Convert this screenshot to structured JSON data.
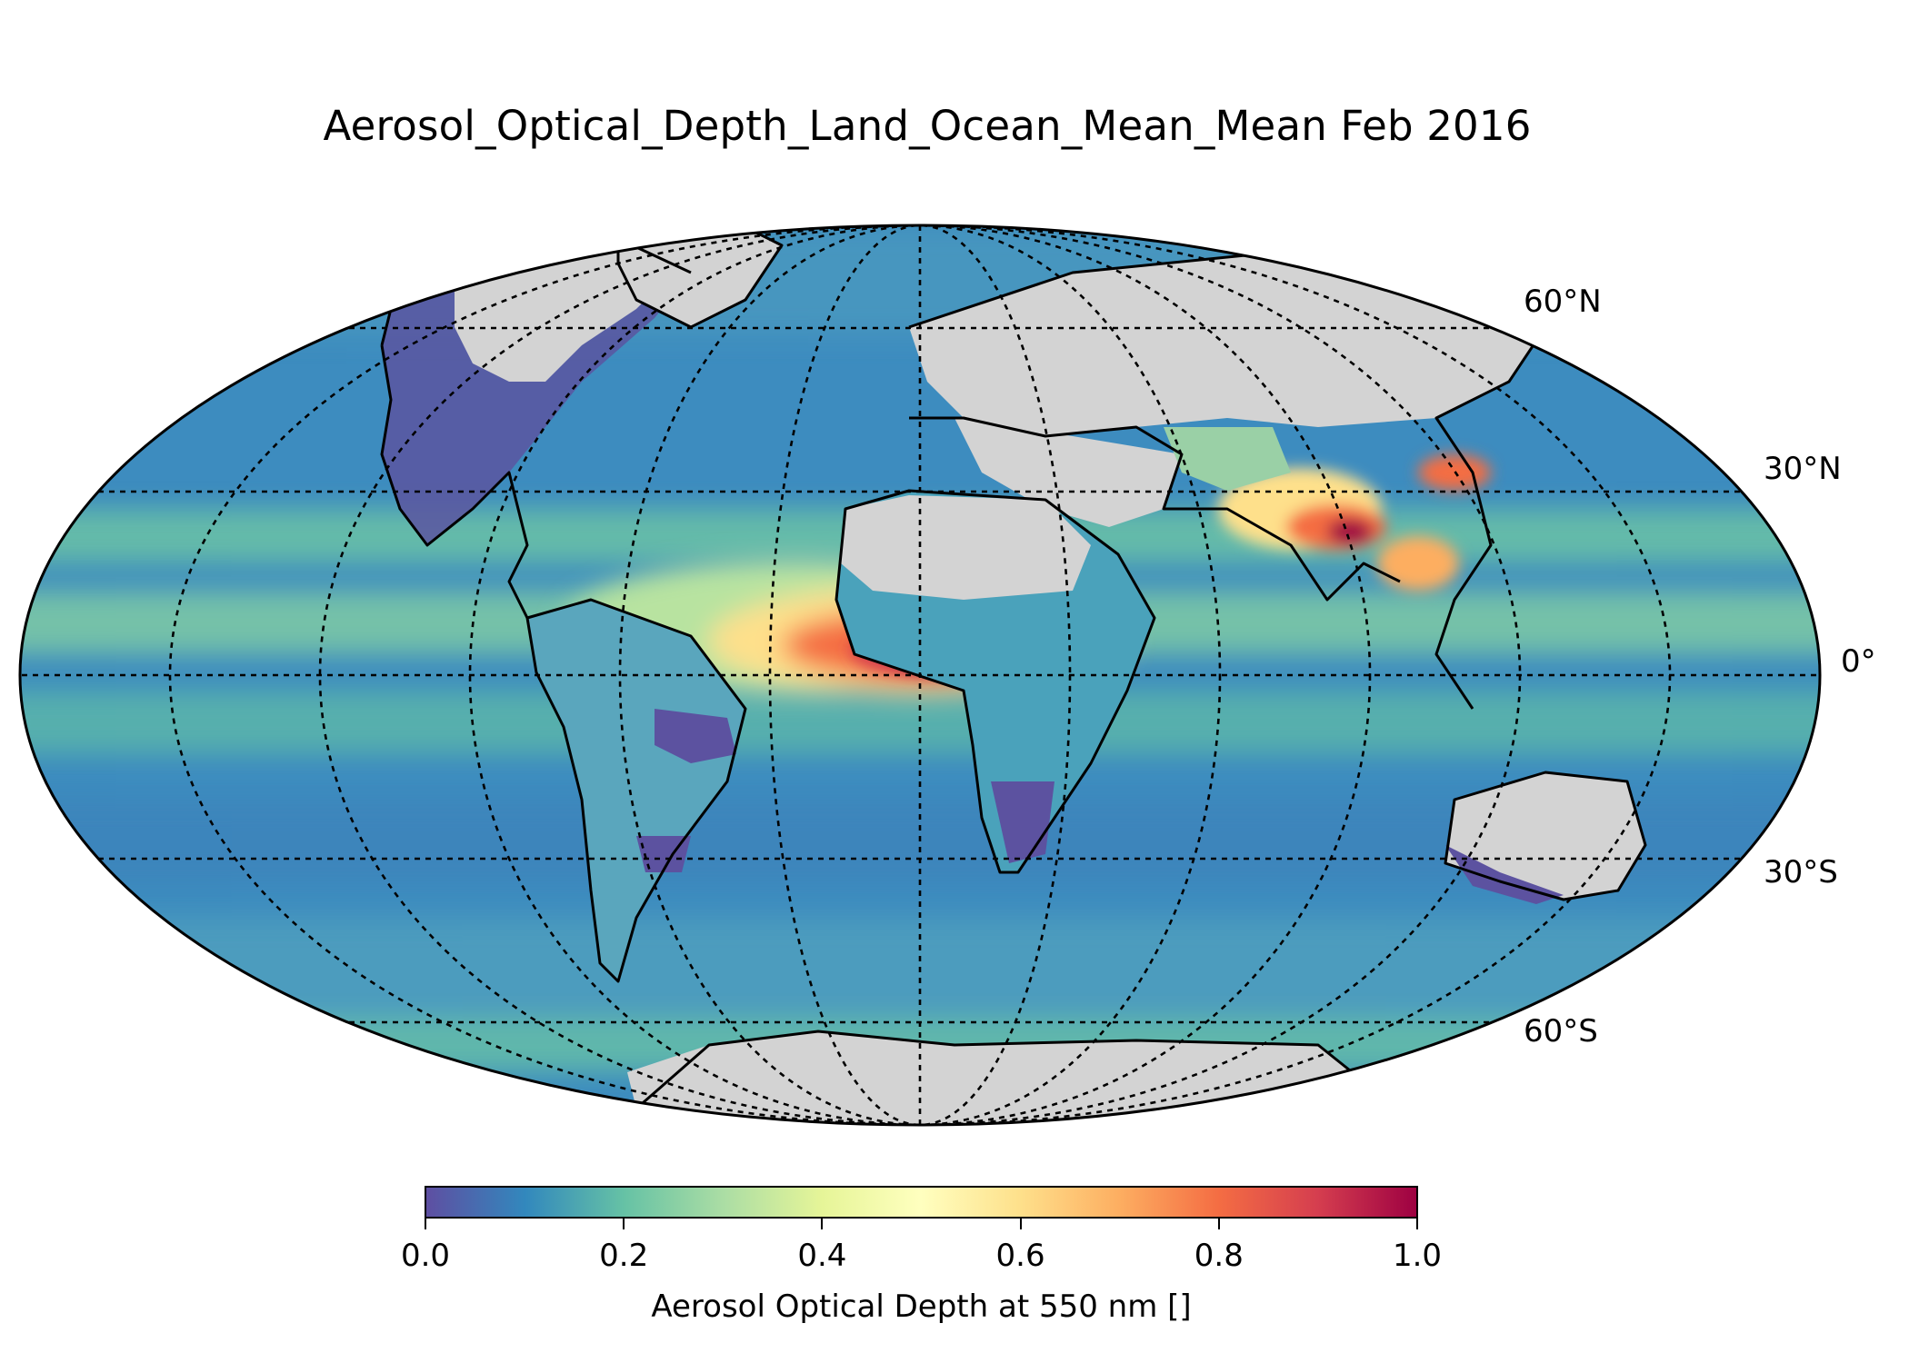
{
  "title": "Aerosol_Optical_Depth_Land_Ocean_Mean_Mean Feb 2016",
  "projection": "mollweide",
  "gridline_style": "dotted",
  "land_no_data_color": "#d3d3d3",
  "latitude_labels": {
    "n60": "60°N",
    "n30": "30°N",
    "eq": "0°",
    "s30": "30°S",
    "s60": "60°S"
  },
  "colorbar": {
    "colormap": "Spectral_r",
    "stops": [
      "#5e4fa2",
      "#3288bd",
      "#66c2a5",
      "#abdda4",
      "#e6f598",
      "#ffffbf",
      "#fee08b",
      "#fdae61",
      "#f46d43",
      "#d53e4f",
      "#9e0142"
    ],
    "range": [
      0.0,
      1.0
    ],
    "ticks": [
      "0.0",
      "0.2",
      "0.4",
      "0.6",
      "0.8",
      "1.0"
    ],
    "label": "Aerosol Optical Depth at 550 nm []"
  }
}
